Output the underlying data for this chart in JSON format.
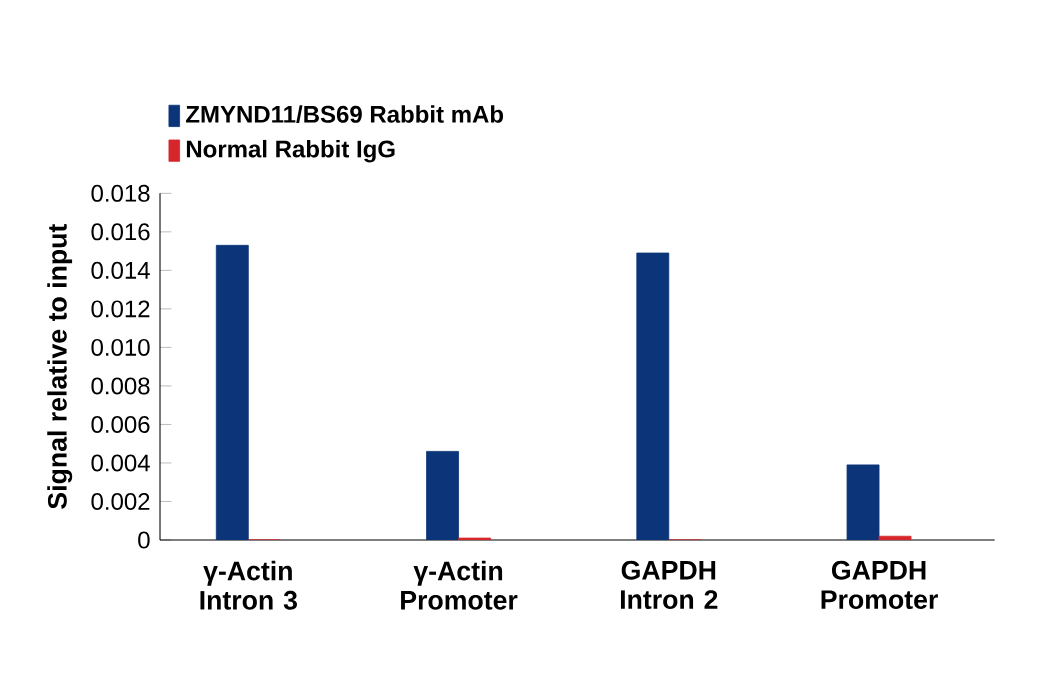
{
  "chart_data": {
    "type": "bar",
    "ylabel": "Signal relative to input",
    "categories": [
      "γ-Actin Intron 3",
      "γ-Actin Promoter",
      "GAPDH Intron 2",
      "GAPDH Promoter"
    ],
    "series": [
      {
        "name": "ZMYND11/BS69 Rabbit mAb",
        "color": "#0b3479",
        "values": [
          0.0153,
          0.0046,
          0.0149,
          0.0039
        ]
      },
      {
        "name": "Normal Rabbit IgG",
        "color": "#d7262b",
        "values": [
          0,
          0.0001,
          0,
          0.0002
        ]
      }
    ],
    "ylim": [
      0,
      0.018
    ],
    "yticks": [
      0,
      {
        "value": 0.002,
        "label": "0.002"
      },
      {
        "value": 0.004,
        "label": "0.004"
      },
      {
        "value": 0.006,
        "label": "0.006"
      },
      {
        "value": 0.008,
        "label": "0.008"
      },
      {
        "value": 0.01,
        "label": "0.010"
      },
      {
        "value": 0.012,
        "label": "0.012"
      },
      {
        "value": 0.014,
        "label": "0.014"
      },
      {
        "value": 0.016,
        "label": "0.016"
      },
      {
        "value": 0.018,
        "label": "0.018"
      }
    ],
    "grid": false,
    "legend": "top left"
  }
}
